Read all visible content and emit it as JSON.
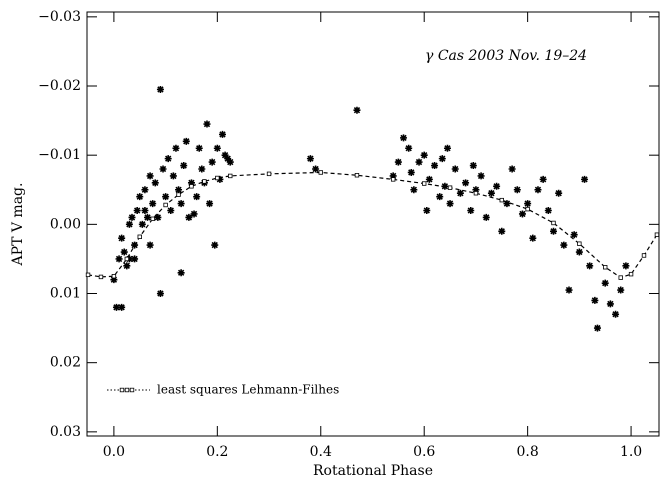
{
  "chart_data": {
    "type": "scatter",
    "xlabel": "Rotational Phase",
    "ylabel": "APT V mag.",
    "annotation": "γ Cas 2003 Nov. 19–24",
    "xlim": [
      -0.052,
      1.054
    ],
    "ylim": [
      0.0306,
      -0.0307
    ],
    "invert_y": true,
    "xticks": [
      {
        "value": 0,
        "label": "0.0"
      },
      {
        "value": 0.2,
        "label": "0.2"
      },
      {
        "value": 0.4,
        "label": "0.4"
      },
      {
        "value": 0.6,
        "label": "0.6"
      },
      {
        "value": 0.8,
        "label": "0.8"
      },
      {
        "value": 1,
        "label": "1.0"
      }
    ],
    "yticks": [
      {
        "value": -0.03,
        "label": "−0.03"
      },
      {
        "value": -0.02,
        "label": "−0.02"
      },
      {
        "value": -0.01,
        "label": "−0.01"
      },
      {
        "value": 0,
        "label": "0.00"
      },
      {
        "value": 0.01,
        "label": "0.01"
      },
      {
        "value": 0.02,
        "label": "0.02"
      },
      {
        "value": 0.03,
        "label": "0.03"
      }
    ],
    "legend": "lower left",
    "series": [
      {
        "kind": "points",
        "color": "#000000",
        "x": [
          0.0,
          0.005,
          0.015,
          0.01,
          0.02,
          0.015,
          0.025,
          0.03,
          0.03,
          0.035,
          0.04,
          0.04,
          0.045,
          0.05,
          0.055,
          0.06,
          0.06,
          0.065,
          0.07,
          0.07,
          0.075,
          0.08,
          0.085,
          0.09,
          0.09,
          0.095,
          0.1,
          0.105,
          0.11,
          0.115,
          0.12,
          0.125,
          0.13,
          0.13,
          0.135,
          0.14,
          0.145,
          0.15,
          0.155,
          0.16,
          0.165,
          0.17,
          0.175,
          0.18,
          0.185,
          0.19,
          0.195,
          0.2,
          0.205,
          0.21,
          0.215,
          0.22,
          0.225,
          0.38,
          0.39,
          0.47,
          0.54,
          0.55,
          0.56,
          0.57,
          0.575,
          0.58,
          0.59,
          0.6,
          0.605,
          0.61,
          0.62,
          0.63,
          0.635,
          0.64,
          0.645,
          0.65,
          0.66,
          0.67,
          0.68,
          0.69,
          0.695,
          0.7,
          0.71,
          0.72,
          0.73,
          0.74,
          0.75,
          0.76,
          0.77,
          0.78,
          0.79,
          0.8,
          0.81,
          0.82,
          0.83,
          0.84,
          0.85,
          0.86,
          0.87,
          0.88,
          0.89,
          0.9,
          0.91,
          0.92,
          0.93,
          0.935,
          0.95,
          0.96,
          0.97,
          0.98,
          0.99
        ],
        "values": [
          0.008,
          0.012,
          0.012,
          0.005,
          0.004,
          0.002,
          0.006,
          0.005,
          0.0,
          -0.001,
          0.005,
          0.003,
          -0.002,
          -0.004,
          0.0,
          -0.002,
          -0.005,
          -0.001,
          0.003,
          -0.007,
          -0.003,
          -0.006,
          -0.001,
          -0.0195,
          0.01,
          -0.008,
          -0.004,
          -0.0095,
          -0.002,
          -0.007,
          -0.011,
          -0.005,
          0.007,
          -0.003,
          -0.0085,
          -0.012,
          -0.001,
          -0.006,
          -0.0015,
          -0.004,
          -0.011,
          -0.008,
          -0.006,
          -0.0145,
          -0.003,
          -0.009,
          0.003,
          -0.011,
          -0.0065,
          -0.013,
          -0.01,
          -0.0095,
          -0.009,
          -0.0095,
          -0.008,
          -0.0165,
          -0.007,
          -0.009,
          -0.0125,
          -0.011,
          -0.0075,
          -0.005,
          -0.009,
          -0.01,
          -0.002,
          -0.0065,
          -0.0085,
          -0.004,
          -0.0095,
          -0.0055,
          -0.011,
          -0.003,
          -0.008,
          -0.0045,
          -0.006,
          -0.002,
          -0.0085,
          -0.005,
          -0.007,
          -0.001,
          -0.0045,
          -0.0055,
          0.001,
          -0.003,
          -0.008,
          -0.005,
          -0.0015,
          -0.003,
          0.002,
          -0.005,
          -0.0065,
          -0.002,
          0.001,
          -0.0045,
          0.003,
          0.0095,
          0.0015,
          0.004,
          -0.0065,
          0.006,
          0.011,
          0.015,
          0.0085,
          0.0115,
          0.013,
          0.0095,
          0.006
        ]
      },
      {
        "kind": "fit",
        "name": "least squares Lehmann-Filhes",
        "color": "#000000",
        "x": [
          -0.05,
          -0.025,
          0,
          0.025,
          0.05,
          0.075,
          0.1,
          0.125,
          0.15,
          0.175,
          0.2,
          0.225,
          0.3,
          0.4,
          0.47,
          0.54,
          0.6,
          0.65,
          0.7,
          0.75,
          0.8,
          0.85,
          0.9,
          0.95,
          0.98,
          1.0,
          1.025,
          1.05
        ],
        "values": [
          0.0073,
          0.0076,
          0.0075,
          0.005,
          0.0018,
          -0.0008,
          -0.0028,
          -0.0043,
          -0.0055,
          -0.0062,
          -0.0067,
          -0.007,
          -0.0073,
          -0.0075,
          -0.0071,
          -0.0065,
          -0.0059,
          -0.0053,
          -0.0045,
          -0.0035,
          -0.0022,
          -0.0002,
          0.0028,
          0.0062,
          0.0077,
          0.0072,
          0.0045,
          0.0015
        ]
      }
    ]
  }
}
